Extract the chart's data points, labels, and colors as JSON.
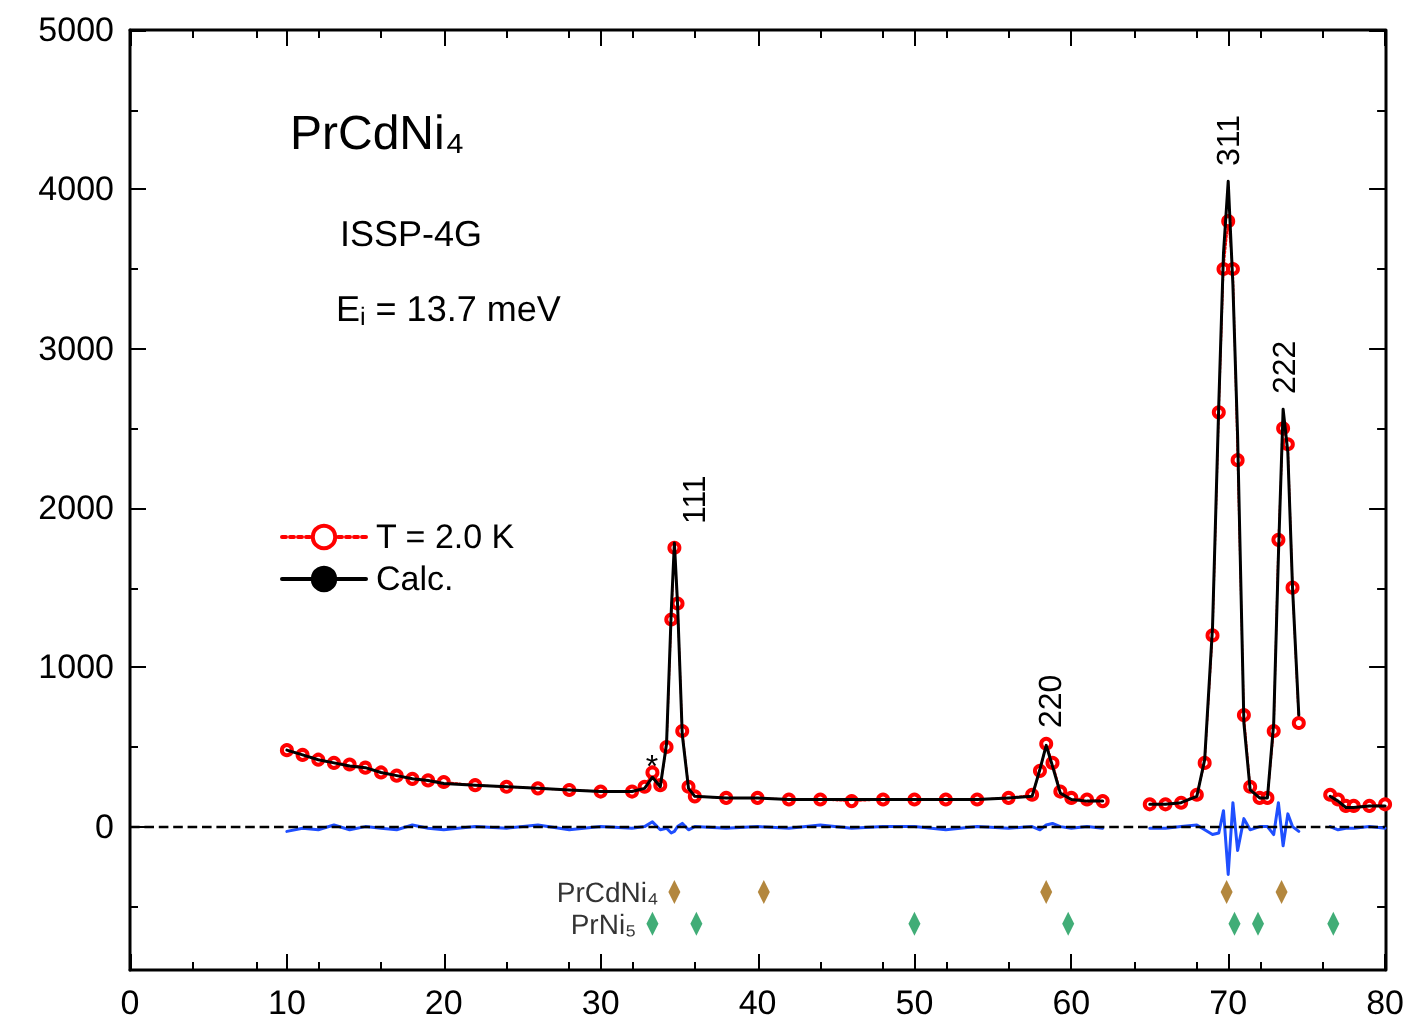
{
  "chart_data": {
    "type": "line",
    "x": [
      10,
      11,
      12,
      13,
      14,
      15,
      16,
      17,
      18,
      19,
      20,
      22,
      24,
      26,
      28,
      30,
      32,
      32.8,
      33.3,
      33.8,
      34.2,
      34.5,
      34.7,
      34.9,
      35.2,
      35.6,
      36,
      38,
      40,
      42,
      44,
      46,
      48,
      50,
      52,
      54,
      56,
      57.5,
      58,
      58.4,
      58.8,
      59.3,
      60,
      61,
      62,
      63,
      64,
      65,
      66,
      67,
      68,
      68.5,
      69,
      69.4,
      69.7,
      70,
      70.3,
      70.6,
      71,
      71.4,
      72,
      72.5,
      72.9,
      73.2,
      73.5,
      73.8,
      74.1,
      74.5,
      75,
      76,
      76.5,
      77,
      77.5,
      78,
      79,
      80
    ],
    "series": [
      {
        "name": "T = 2.0 K",
        "color": "#ff0000",
        "marker": "circle",
        "line_style": "dotted",
        "values": [
          480,
          450,
          420,
          400,
          390,
          370,
          340,
          320,
          300,
          290,
          280,
          260,
          250,
          240,
          230,
          220,
          220,
          250,
          340,
          260,
          500,
          1300,
          1750,
          1400,
          600,
          250,
          190,
          180,
          180,
          170,
          170,
          160,
          170,
          170,
          170,
          170,
          180,
          200,
          350,
          520,
          400,
          220,
          180,
          170,
          160,
          null,
          null,
          140,
          140,
          150,
          200,
          400,
          1200,
          2600,
          3500,
          3800,
          3500,
          2300,
          700,
          250,
          180,
          180,
          600,
          1800,
          2500,
          2400,
          1500,
          650,
          null,
          null,
          200,
          170,
          130,
          130,
          130,
          140
        ]
      },
      {
        "name": "Calc.",
        "color": "#000000",
        "marker": "none",
        "line_style": "solid",
        "values": [
          480,
          450,
          420,
          400,
          380,
          370,
          340,
          320,
          300,
          290,
          270,
          260,
          250,
          240,
          230,
          220,
          220,
          240,
          310,
          250,
          520,
          1350,
          1780,
          1400,
          580,
          240,
          190,
          180,
          180,
          170,
          170,
          170,
          170,
          170,
          170,
          170,
          180,
          190,
          360,
          510,
          380,
          210,
          170,
          160,
          160,
          null,
          null,
          140,
          140,
          150,
          190,
          420,
          1250,
          2650,
          3600,
          4050,
          3400,
          2450,
          650,
          230,
          180,
          180,
          650,
          1700,
          2620,
          2350,
          1500,
          700,
          null,
          null,
          190,
          160,
          120,
          120,
          130,
          130
        ]
      },
      {
        "color": "#1f4fff",
        "marker": "none",
        "line_style": "solid",
        "values": [
          -30,
          -10,
          -20,
          10,
          -20,
          0,
          -10,
          -20,
          10,
          -10,
          -20,
          0,
          -10,
          10,
          -20,
          0,
          -10,
          0,
          30,
          -20,
          -10,
          -40,
          -30,
          0,
          20,
          -20,
          0,
          -10,
          0,
          -10,
          10,
          -10,
          0,
          0,
          -20,
          0,
          -10,
          0,
          -20,
          10,
          20,
          0,
          -10,
          0,
          -10,
          null,
          null,
          -10,
          -10,
          0,
          10,
          -20,
          -50,
          -40,
          100,
          -300,
          150,
          -150,
          50,
          -20,
          0,
          0,
          -50,
          150,
          -120,
          80,
          0,
          -30,
          null,
          null,
          0,
          -20,
          -10,
          -10,
          0,
          -10
        ]
      },
      {
        "name": "PrCdNi₄",
        "type": "scatter",
        "color": "#a0690e",
        "marker": "diamond",
        "x": [
          34.7,
          40.4,
          58.4,
          69.9,
          73.4
        ],
        "values": [
          -410,
          -410,
          -410,
          -410,
          -410
        ]
      },
      {
        "name": "PrNi₅",
        "type": "scatter",
        "color": "#119955",
        "marker": "diamond",
        "x": [
          33.3,
          36.1,
          50,
          59.8,
          70.4,
          71.9,
          76.7
        ],
        "values": [
          -610,
          -610,
          -610,
          -610,
          -610,
          -610,
          -610
        ]
      }
    ],
    "xlim": [
      0,
      80
    ],
    "xticks": [
      0,
      10,
      20,
      30,
      40,
      50,
      60,
      70,
      80
    ],
    "ylim": [
      -900,
      5000
    ],
    "yticks": [
      0,
      1000,
      2000,
      3000,
      4000,
      5000
    ],
    "ref_lines": [
      {
        "axis": "y",
        "value": 0,
        "color": "#000000",
        "line_style": "dashed"
      }
    ],
    "legend": "left",
    "annotations": [
      "PrCdNi₄",
      "ISSP-4G",
      "E$_{i}$ = 13.7 meV",
      "*",
      "111",
      "220",
      "311",
      "222"
    ]
  }
}
